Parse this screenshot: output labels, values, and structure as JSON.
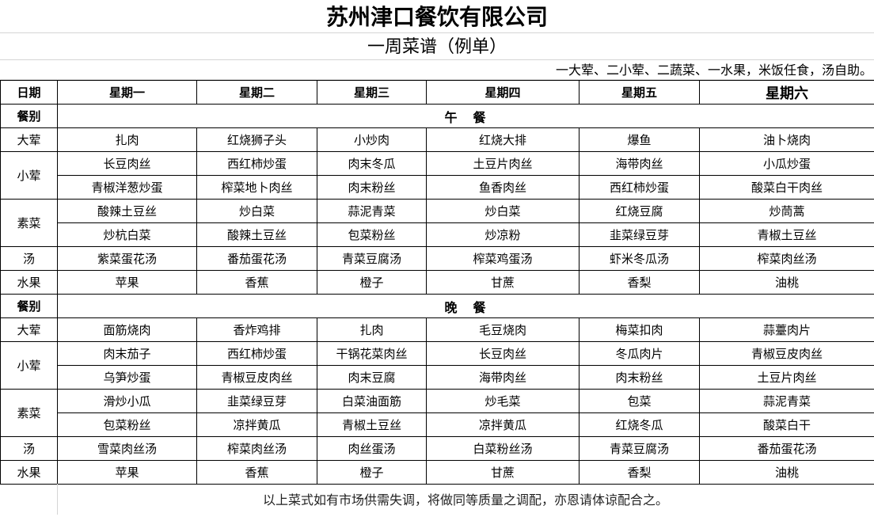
{
  "title": "苏州津口餐饮有限公司",
  "subtitle": "一周菜谱（例单）",
  "note": "一大荤、二小荤、二蔬菜、一水果，米饭任食，汤自助。",
  "header": {
    "date_label": "日期",
    "days": [
      "星期一",
      "星期二",
      "星期三",
      "星期四",
      "星期五",
      "星期六"
    ]
  },
  "meal_label": "餐别",
  "meals": [
    {
      "name": "午　餐",
      "categories": [
        {
          "name": "大荤",
          "rows": [
            [
              "扎肉",
              "红烧狮子头",
              "小炒肉",
              "红烧大排",
              "爆鱼",
              "油卜烧肉"
            ]
          ]
        },
        {
          "name": "小荤",
          "rows": [
            [
              "长豆肉丝",
              "西红柿炒蛋",
              "肉末冬瓜",
              "土豆片肉丝",
              "海带肉丝",
              "小瓜炒蛋"
            ],
            [
              "青椒洋葱炒蛋",
              "榨菜地卜肉丝",
              "肉末粉丝",
              "鱼香肉丝",
              "西红柿炒蛋",
              "酸菜白干肉丝"
            ]
          ]
        },
        {
          "name": "素菜",
          "rows": [
            [
              "酸辣土豆丝",
              "炒白菜",
              "蒜泥青菜",
              "炒白菜",
              "红烧豆腐",
              "炒茼蒿"
            ],
            [
              "炒杭白菜",
              "酸辣土豆丝",
              "包菜粉丝",
              "炒凉粉",
              "韭菜绿豆芽",
              "青椒土豆丝"
            ]
          ]
        },
        {
          "name": "汤",
          "rows": [
            [
              "紫菜蛋花汤",
              "番茄蛋花汤",
              "青菜豆腐汤",
              "榨菜鸡蛋汤",
              "虾米冬瓜汤",
              "榨菜肉丝汤"
            ]
          ]
        },
        {
          "name": "水果",
          "rows": [
            [
              "苹果",
              "香蕉",
              "橙子",
              "甘蔗",
              "香梨",
              "油桃"
            ]
          ]
        }
      ]
    },
    {
      "name": "晚　餐",
      "categories": [
        {
          "name": "大荤",
          "rows": [
            [
              "面筋烧肉",
              "香炸鸡排",
              "扎肉",
              "毛豆烧肉",
              "梅菜扣肉",
              "蒜薹肉片"
            ]
          ]
        },
        {
          "name": "小荤",
          "rows": [
            [
              "肉末茄子",
              "西红柿炒蛋",
              "干锅花菜肉丝",
              "长豆肉丝",
              "冬瓜肉片",
              "青椒豆皮肉丝"
            ],
            [
              "乌笋炒蛋",
              "青椒豆皮肉丝",
              "肉末豆腐",
              "海带肉丝",
              "肉末粉丝",
              "土豆片肉丝"
            ]
          ]
        },
        {
          "name": "素菜",
          "rows": [
            [
              "滑炒小瓜",
              "韭菜绿豆芽",
              "白菜油面筋",
              "炒毛菜",
              "包菜",
              "蒜泥青菜"
            ],
            [
              "包菜粉丝",
              "凉拌黄瓜",
              "青椒土豆丝",
              "凉拌黄瓜",
              "红烧冬瓜",
              "酸菜白干"
            ]
          ]
        },
        {
          "name": "汤",
          "rows": [
            [
              "雪菜肉丝汤",
              "榨菜肉丝汤",
              "肉丝蛋汤",
              "白菜粉丝汤",
              "青菜豆腐汤",
              "番茄蛋花汤"
            ]
          ]
        },
        {
          "name": "水果",
          "rows": [
            [
              "苹果",
              "香蕉",
              "橙子",
              "甘蔗",
              "香梨",
              "油桃"
            ]
          ]
        }
      ]
    }
  ],
  "footer": "以上菜式如有市场供需失调，将做同等质量之调配，亦恩请体谅配合之。"
}
